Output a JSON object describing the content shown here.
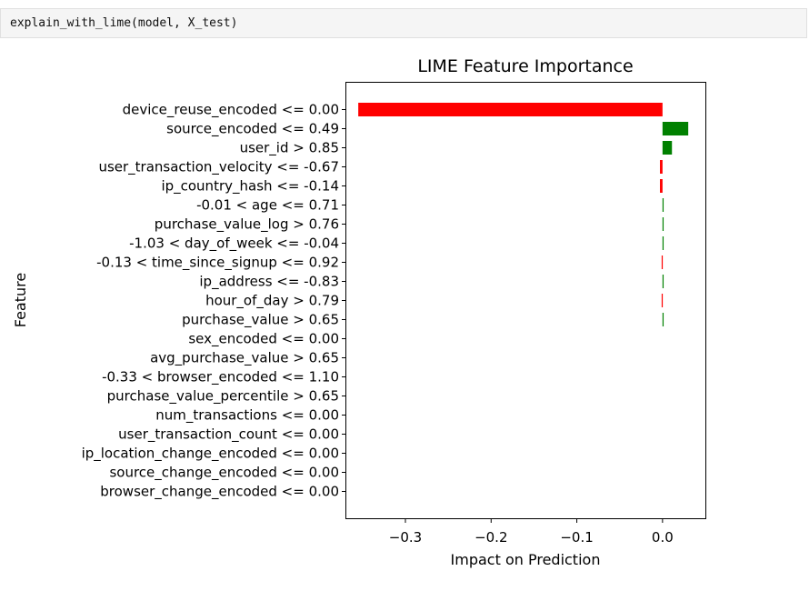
{
  "code_cell": {
    "source": "explain_with_lime(model, X_test)"
  },
  "chart_data": {
    "type": "bar",
    "orientation": "horizontal",
    "title": "LIME Feature Importance",
    "xlabel": "Impact on Prediction",
    "ylabel": "Feature",
    "xlim": [
      -0.37,
      0.05
    ],
    "xticks": [
      -0.3,
      -0.2,
      -0.1,
      0.0
    ],
    "xtick_labels": [
      "−0.3",
      "−0.2",
      "−0.1",
      "0.0"
    ],
    "grid": false,
    "positive_color": "#008000",
    "negative_color": "#ff0000",
    "categories": [
      "device_reuse_encoded <= 0.00",
      "source_encoded <= 0.49",
      "user_id > 0.85",
      "user_transaction_velocity <= -0.67",
      "ip_country_hash <= -0.14",
      "-0.01 < age <= 0.71",
      "purchase_value_log > 0.76",
      "-1.03 < day_of_week <= -0.04",
      "-0.13 < time_since_signup <= 0.92",
      "ip_address <= -0.83",
      "hour_of_day > 0.79",
      "purchase_value > 0.65",
      "sex_encoded <= 0.00",
      "avg_purchase_value > 0.65",
      "-0.33 < browser_encoded <= 1.10",
      "purchase_value_percentile > 0.65",
      "num_transactions <= 0.00",
      "user_transaction_count <= 0.00",
      "ip_location_change_encoded <= 0.00",
      "source_change_encoded <= 0.00",
      "browser_change_encoded <= 0.00"
    ],
    "values": [
      -0.355,
      0.03,
      0.011,
      -0.003,
      -0.003,
      0.001,
      0.001,
      0.001,
      -0.001,
      0.001,
      -0.001,
      0.001,
      0.0,
      0.0,
      0.0,
      0.0,
      0.0,
      0.0,
      0.0,
      0.0,
      0.0
    ]
  }
}
